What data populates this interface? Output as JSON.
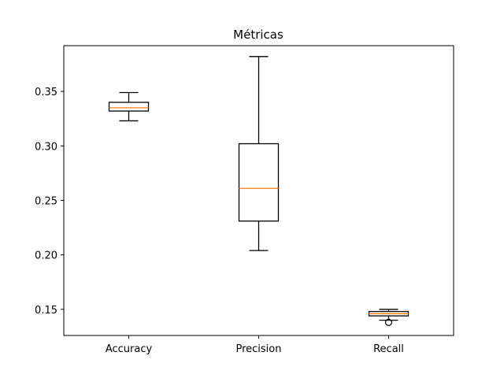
{
  "chart_data": {
    "type": "box",
    "title": "Métricas",
    "xlabel": "",
    "ylabel": "",
    "ylim": [
      0.126,
      0.392
    ],
    "yticks": [
      0.15,
      0.2,
      0.25,
      0.3,
      0.35
    ],
    "ytick_labels": [
      "0.15",
      "0.20",
      "0.25",
      "0.30",
      "0.35"
    ],
    "categories": [
      "Accuracy",
      "Precision",
      "Recall"
    ],
    "boxes": [
      {
        "name": "Accuracy",
        "whisker_low": 0.323,
        "q1": 0.332,
        "median": 0.335,
        "q3": 0.34,
        "whisker_high": 0.349,
        "outliers": []
      },
      {
        "name": "Precision",
        "whisker_low": 0.204,
        "q1": 0.231,
        "median": 0.261,
        "q3": 0.302,
        "whisker_high": 0.382,
        "outliers": []
      },
      {
        "name": "Recall",
        "whisker_low": 0.14,
        "q1": 0.144,
        "median": 0.146,
        "q3": 0.148,
        "whisker_high": 0.15,
        "outliers": [
          0.138
        ]
      }
    ],
    "colors": {
      "box": "#000000",
      "median": "#ff7f0e",
      "background": "#ffffff"
    },
    "grid": false,
    "legend": "none"
  }
}
